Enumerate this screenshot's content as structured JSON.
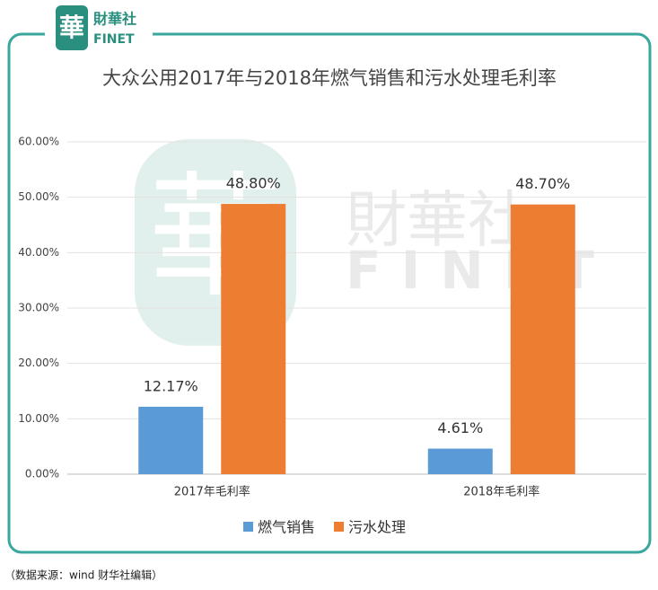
{
  "logo": {
    "mark": "華",
    "name": "財華社",
    "latin": "FINET"
  },
  "chart_data": {
    "type": "bar",
    "title": "大众公用2017年与2018年燃气销售和污水处理毛利率",
    "categories": [
      "2017年毛利率",
      "2018年毛利率"
    ],
    "series": [
      {
        "name": "燃气销售",
        "color": "#5b9bd5",
        "values": [
          12.17,
          4.61
        ],
        "value_labels": [
          "12.17%",
          "4.61%"
        ]
      },
      {
        "name": "污水处理",
        "color": "#ed7d31",
        "values": [
          48.8,
          48.7
        ],
        "value_labels": [
          "48.80%",
          "48.70%"
        ]
      }
    ],
    "ylim": [
      0,
      60
    ],
    "yticks": [
      {
        "value": 0,
        "label": "0.00%"
      },
      {
        "value": 10,
        "label": "10.00%"
      },
      {
        "value": 20,
        "label": "20.00%"
      },
      {
        "value": 30,
        "label": "30.00%"
      },
      {
        "value": 40,
        "label": "40.00%"
      },
      {
        "value": 50,
        "label": "50.00%"
      },
      {
        "value": 60,
        "label": "60.00%"
      }
    ],
    "grid": true,
    "legend": "bottom"
  },
  "source": "（数据来源：wind  财华社编辑）"
}
